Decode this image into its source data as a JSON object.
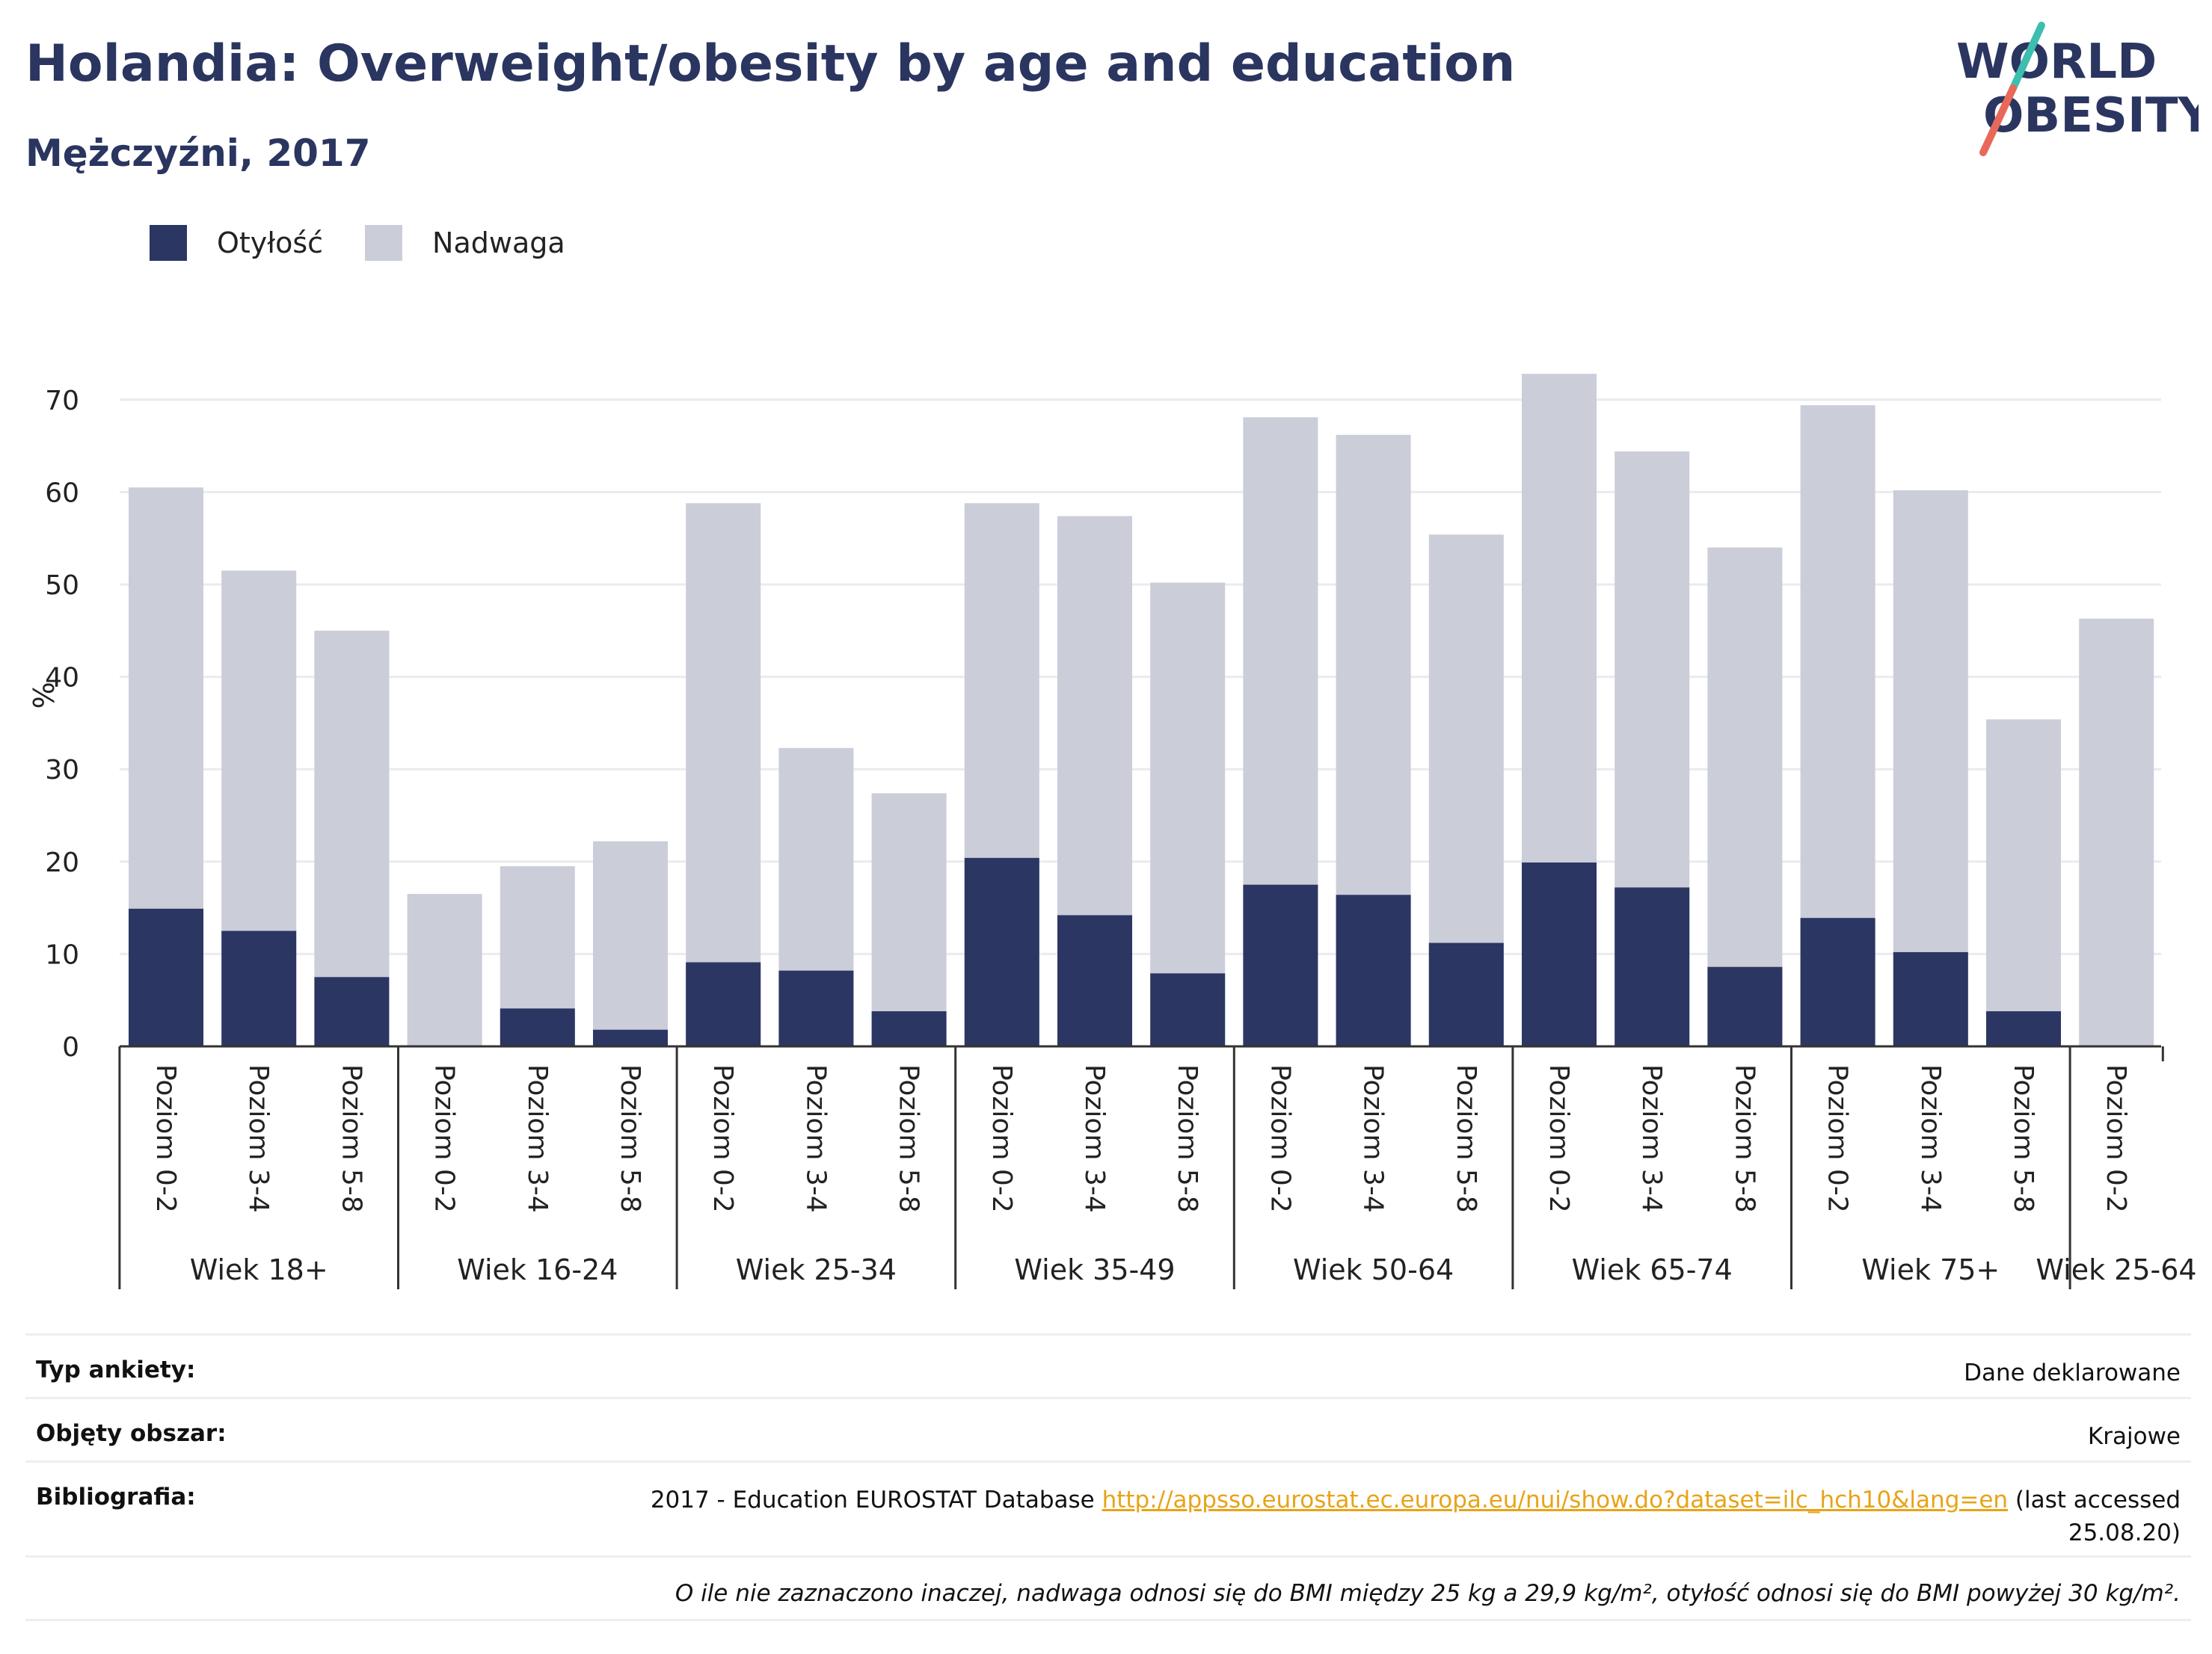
{
  "header": {
    "title": "Holandia: Overweight/obesity by age and education",
    "subtitle": "Mężczyźni, 2017"
  },
  "logo": {
    "line1": "WORLD",
    "line2": "OBESITY"
  },
  "colors": {
    "obesity": "#2b3663",
    "overweight": "#cbcdd9",
    "link": "#e8a317",
    "logo_text": "#2a3560",
    "logo_slash_top": "#3cbfae",
    "logo_slash_bottom": "#e8695a"
  },
  "legend": {
    "obesity": "Otyłość",
    "overweight": "Nadwaga"
  },
  "chart_data": {
    "type": "bar",
    "stacked": true,
    "ylabel": "%",
    "ylim": [
      0,
      72
    ],
    "yticks": [
      0,
      10,
      20,
      30,
      40,
      50,
      60,
      70
    ],
    "grid": true,
    "legend_position": "top-left",
    "groups": [
      {
        "label": "Wiek 18+",
        "bars": [
          {
            "label": "Poziom 0-2",
            "obesity": 14.9,
            "total": 60.5
          },
          {
            "label": "Poziom 3-4",
            "obesity": 12.5,
            "total": 51.5
          },
          {
            "label": "Poziom 5-8",
            "obesity": 7.5,
            "total": 45.0
          }
        ]
      },
      {
        "label": "Wiek 16-24",
        "bars": [
          {
            "label": "Poziom 0-2",
            "obesity": 0,
            "total": 16.5
          },
          {
            "label": "Poziom 3-4",
            "obesity": 4.1,
            "total": 19.5
          },
          {
            "label": "Poziom 5-8",
            "obesity": 1.8,
            "total": 22.2
          }
        ]
      },
      {
        "label": "Wiek 25-34",
        "bars": [
          {
            "label": "Poziom 0-2",
            "obesity": 9.1,
            "total": 58.8
          },
          {
            "label": "Poziom 3-4",
            "obesity": 8.2,
            "total": 32.3
          },
          {
            "label": "Poziom 5-8",
            "obesity": 3.8,
            "total": 27.4
          }
        ]
      },
      {
        "label": "Wiek 35-49",
        "bars": [
          {
            "label": "Poziom 0-2",
            "obesity": 20.4,
            "total": 58.8
          },
          {
            "label": "Poziom 3-4",
            "obesity": 14.2,
            "total": 57.4
          },
          {
            "label": "Poziom 5-8",
            "obesity": 7.9,
            "total": 50.2
          }
        ]
      },
      {
        "label": "Wiek 50-64",
        "bars": [
          {
            "label": "Poziom 0-2",
            "obesity": 17.5,
            "total": 68.1
          },
          {
            "label": "Poziom 3-4",
            "obesity": 16.4,
            "total": 66.2
          },
          {
            "label": "Poziom 5-8",
            "obesity": 11.2,
            "total": 55.4
          }
        ]
      },
      {
        "label": "Wiek 65-74",
        "bars": [
          {
            "label": "Poziom 0-2",
            "obesity": 19.9,
            "total": 72.8
          },
          {
            "label": "Poziom 3-4",
            "obesity": 17.2,
            "total": 64.4
          },
          {
            "label": "Poziom 5-8",
            "obesity": 8.6,
            "total": 54.0
          }
        ]
      },
      {
        "label": "Wiek 75+",
        "bars": [
          {
            "label": "Poziom 0-2",
            "obesity": 13.9,
            "total": 69.4
          },
          {
            "label": "Poziom 3-4",
            "obesity": 10.2,
            "total": 60.2
          },
          {
            "label": "Poziom 5-8",
            "obesity": 3.8,
            "total": 35.4
          }
        ]
      },
      {
        "label": "Wiek 25-64",
        "bars": [
          {
            "label": "Poziom 0-2",
            "obesity": 0,
            "total": 46.3
          }
        ]
      }
    ]
  },
  "meta": {
    "survey_label": "Typ ankiety:",
    "survey_value": "Dane deklarowane",
    "area_label": "Objęty obszar:",
    "area_value": "Krajowe",
    "bib_label": "Bibliografia:",
    "bib_prefix": "2017 - Education EUROSTAT Database",
    "bib_link": "http://appsso.eurostat.ec.europa.eu/nui/show.do?dataset=ilc_hch10&lang=en",
    "bib_suffix": "(last accessed",
    "bib_date": "25.08.20)",
    "note": "O ile nie zaznaczono inaczej, nadwaga odnosi się do BMI między 25 kg a 29,9 kg/m², otyłość odnosi się do BMI powyżej 30 kg/m²."
  }
}
